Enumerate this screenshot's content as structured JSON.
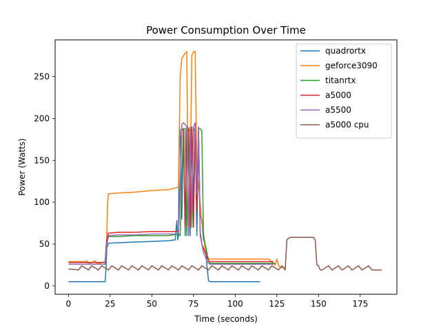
{
  "chart_data": {
    "type": "line",
    "title": "Power Consumption Over Time",
    "xlabel": "Time (seconds)",
    "ylabel": "Power (Watts)",
    "xlim": [
      -8,
      197
    ],
    "ylim": [
      -10,
      294
    ],
    "xticks": [
      0,
      25,
      50,
      75,
      100,
      125,
      150,
      175
    ],
    "yticks": [
      0,
      50,
      100,
      150,
      200,
      250
    ],
    "grid": false,
    "legend_position": "top-right",
    "series": [
      {
        "name": "quadrortx",
        "color": "#1f77b4",
        "x": [
          0,
          22,
          22.5,
          23,
          24,
          35,
          50,
          60,
          64,
          65,
          65.5,
          66,
          66.5,
          67,
          68,
          69,
          70,
          71,
          72,
          73,
          74,
          75,
          76,
          77,
          78,
          79,
          80,
          81,
          82,
          82.5,
          83,
          84,
          85,
          86,
          90,
          100,
          110,
          115
        ],
        "y": [
          5,
          5,
          20,
          45,
          51,
          52,
          53,
          54,
          55,
          78,
          55,
          60,
          190,
          185,
          80,
          188,
          60,
          190,
          185,
          60,
          188,
          100,
          190,
          60,
          185,
          82,
          80,
          55,
          50,
          45,
          25,
          6,
          5,
          5,
          5,
          5,
          5,
          5
        ]
      },
      {
        "name": "geforce3090",
        "color": "#ff7f0e",
        "x": [
          0,
          10,
          11,
          12,
          15,
          16,
          17,
          22,
          23,
          23.5,
          24,
          30,
          40,
          50,
          60,
          66,
          67,
          68,
          70,
          71,
          72,
          73,
          74,
          75,
          76,
          77,
          78,
          79,
          80,
          81,
          82,
          84,
          85,
          90,
          100,
          110,
          120,
          124,
          125,
          126,
          127,
          130
        ],
        "y": [
          29,
          29,
          30,
          26,
          29,
          30,
          26,
          29,
          60,
          100,
          110,
          111,
          112,
          114,
          115,
          118,
          250,
          272,
          278,
          280,
          60,
          120,
          275,
          280,
          280,
          140,
          120,
          100,
          75,
          65,
          40,
          33,
          32,
          32,
          32,
          32,
          32,
          25,
          32,
          25,
          22,
          22
        ]
      },
      {
        "name": "titanrtx",
        "color": "#2ca02c",
        "x": [
          0,
          22,
          23,
          24,
          30,
          40,
          50,
          60,
          66,
          67,
          68,
          69,
          70,
          71,
          72,
          73,
          74,
          75,
          76,
          77,
          78,
          79,
          80,
          81,
          82,
          83,
          84,
          85,
          90,
          100,
          110,
          120,
          124
        ],
        "y": [
          26,
          26,
          50,
          59,
          59,
          60,
          60,
          60,
          62,
          60,
          130,
          188,
          188,
          60,
          188,
          185,
          70,
          188,
          185,
          90,
          188,
          188,
          185,
          60,
          50,
          40,
          30,
          27,
          27,
          27,
          27,
          27,
          27
        ]
      },
      {
        "name": "a5000",
        "color": "#d62728",
        "x": [
          0,
          22,
          23,
          24,
          30,
          40,
          50,
          60,
          65,
          66,
          67,
          68,
          69,
          70,
          71,
          72,
          73,
          74,
          75,
          76,
          77,
          78,
          79,
          80,
          81,
          82,
          83,
          84,
          85,
          90,
          100,
          110,
          120,
          123
        ],
        "y": [
          28,
          28,
          55,
          63,
          64,
          64,
          65,
          65,
          65,
          66,
          120,
          188,
          185,
          70,
          190,
          188,
          70,
          190,
          70,
          188,
          90,
          185,
          65,
          50,
          45,
          40,
          35,
          30,
          29,
          29,
          29,
          29,
          29,
          29
        ]
      },
      {
        "name": "a5500",
        "color": "#9467bd",
        "x": [
          0,
          22,
          23,
          24,
          30,
          40,
          50,
          60,
          65,
          66,
          67,
          68,
          69,
          70,
          71,
          72,
          73,
          74,
          75,
          76,
          77,
          78,
          79,
          80,
          81,
          82,
          83,
          84,
          85,
          90,
          100,
          110,
          120,
          123
        ],
        "y": [
          26,
          26,
          50,
          60,
          61,
          61,
          62,
          62,
          62,
          64,
          110,
          193,
          195,
          193,
          190,
          60,
          190,
          88,
          190,
          195,
          110,
          190,
          60,
          50,
          40,
          35,
          30,
          27,
          26,
          26,
          26,
          26,
          26,
          26
        ]
      },
      {
        "name": "a5000 cpu",
        "color": "#8c564b",
        "x": [
          0,
          2,
          6,
          8,
          12,
          14,
          18,
          20,
          24,
          26,
          30,
          32,
          36,
          38,
          42,
          44,
          48,
          50,
          54,
          56,
          60,
          62,
          66,
          68,
          72,
          74,
          78,
          80,
          84,
          86,
          90,
          92,
          96,
          98,
          102,
          104,
          108,
          110,
          114,
          116,
          120,
          122,
          126,
          128,
          130,
          131,
          132,
          133,
          140,
          147,
          148,
          149,
          150,
          151,
          152,
          156,
          158,
          162,
          164,
          168,
          170,
          174,
          176,
          180,
          182,
          186,
          188
        ],
        "y": [
          20,
          20,
          19,
          24,
          19,
          24,
          19,
          24,
          19,
          24,
          19,
          24,
          19,
          24,
          19,
          24,
          19,
          24,
          19,
          24,
          19,
          24,
          19,
          24,
          19,
          24,
          19,
          24,
          19,
          24,
          19,
          24,
          19,
          24,
          19,
          24,
          19,
          24,
          19,
          24,
          19,
          24,
          19,
          24,
          19,
          55,
          57,
          58,
          58,
          58,
          55,
          25,
          24,
          19,
          19,
          24,
          19,
          24,
          19,
          24,
          19,
          24,
          19,
          24,
          19,
          19,
          19
        ]
      }
    ]
  }
}
